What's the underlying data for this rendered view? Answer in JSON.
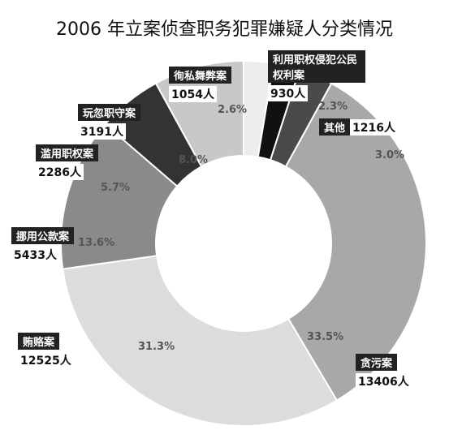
{
  "chart_data": {
    "type": "donut",
    "title": "2006 年立案侦查职务犯罪嫌疑人分类情况",
    "categories": [
      "徇私舞弊案",
      "利用职权侵犯公民权利案",
      "其他",
      "贪污案",
      "贿赂案",
      "挪用公款案",
      "滥用职权案",
      "玩忽职守案"
    ],
    "values": [
      1054,
      930,
      1216,
      13406,
      12525,
      5433,
      2286,
      3191
    ],
    "value_labels": [
      "1054人",
      "930人",
      "1216人",
      "13406人",
      "12525人",
      "5433人",
      "2286人",
      "3191人"
    ],
    "percent_labels": [
      "2.6%",
      "2.3%",
      "3.0%",
      "33.5%",
      "31.3%",
      "13.6%",
      "5.7%",
      "8.0%"
    ],
    "colors": [
      "#ececec",
      "#111111",
      "#4a4a4a",
      "#a8a8a8",
      "#dcdcdc",
      "#8a8a8a",
      "#333333",
      "#c8c8c8"
    ]
  }
}
